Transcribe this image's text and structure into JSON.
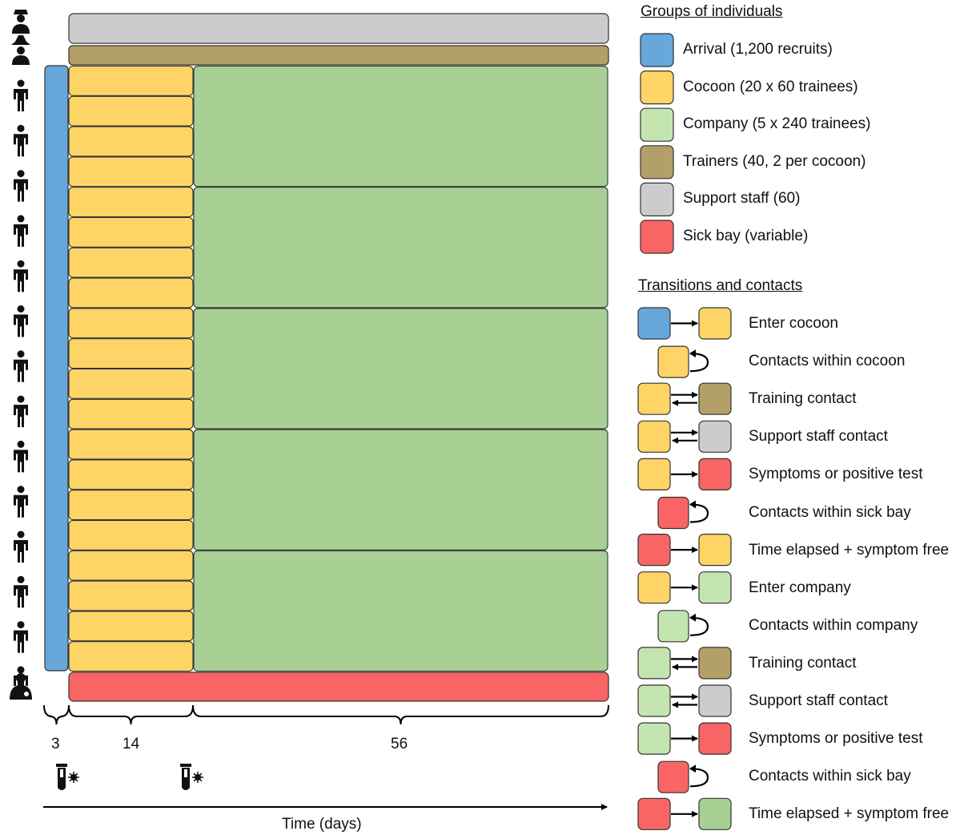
{
  "colors": {
    "arrival": "#67a7da",
    "cocoon": "#ffd466",
    "company": "#a8cf94",
    "company_legend": "#c4e5b0",
    "trainers": "#b39f68",
    "support": "#cccccc",
    "sickbay": "#f96565",
    "stroke": "#333333"
  },
  "groups": {
    "title": "Groups of individuals",
    "items": [
      {
        "label": "Arrival (1,200 recruits)",
        "color_key": "arrival"
      },
      {
        "label": "Cocoon (20 x 60 trainees)",
        "color_key": "cocoon"
      },
      {
        "label": "Company (5 x 240 trainees)",
        "color_key": "company_legend"
      },
      {
        "label": "Trainers (40, 2 per cocoon)",
        "color_key": "trainers"
      },
      {
        "label": "Support staff (60)",
        "color_key": "support"
      },
      {
        "label": "Sick bay (variable)",
        "color_key": "sickbay"
      }
    ]
  },
  "transitions": {
    "title": "Transitions and contacts",
    "items": [
      {
        "label": "Enter cocoon",
        "kind": "arrow",
        "from": "arrival",
        "to": "cocoon"
      },
      {
        "label": "Contacts within cocoon",
        "kind": "self",
        "from": "cocoon"
      },
      {
        "label": "Training contact",
        "kind": "double",
        "from": "cocoon",
        "to": "trainers"
      },
      {
        "label": "Support staff contact",
        "kind": "double",
        "from": "cocoon",
        "to": "support"
      },
      {
        "label": "Symptoms or positive test",
        "kind": "arrow",
        "from": "cocoon",
        "to": "sickbay"
      },
      {
        "label": "Contacts within sick bay",
        "kind": "self",
        "from": "sickbay"
      },
      {
        "label": "Time elapsed + symptom free",
        "kind": "arrow",
        "from": "sickbay",
        "to": "cocoon"
      },
      {
        "label": "Enter company",
        "kind": "arrow",
        "from": "cocoon",
        "to": "company_legend"
      },
      {
        "label": "Contacts within company",
        "kind": "self",
        "from": "company_legend"
      },
      {
        "label": "Training contact",
        "kind": "double",
        "from": "company_legend",
        "to": "trainers"
      },
      {
        "label": "Support staff contact",
        "kind": "double",
        "from": "company_legend",
        "to": "support"
      },
      {
        "label": "Symptoms or positive test",
        "kind": "arrow",
        "from": "company_legend",
        "to": "sickbay"
      },
      {
        "label": "Contacts within sick bay",
        "kind": "self",
        "from": "sickbay"
      },
      {
        "label": "Time elapsed + symptom free",
        "kind": "arrow",
        "from": "sickbay",
        "to": "company"
      }
    ]
  },
  "timeline": {
    "durations": [
      "3",
      "14",
      "56"
    ],
    "axis_label": "Time (days)",
    "test_icon_count": 2
  },
  "diagram": {
    "cocoon_count": 20,
    "company_count": 5,
    "person_icon_count": 14
  }
}
